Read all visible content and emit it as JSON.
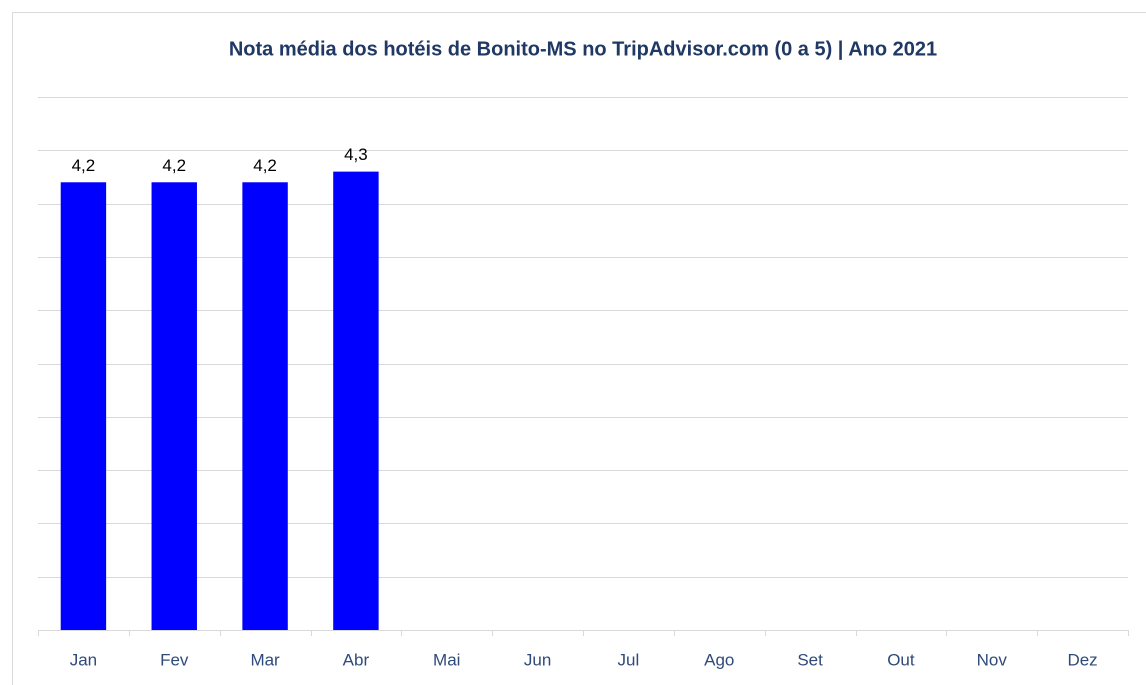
{
  "chart_data": {
    "type": "bar",
    "title": "Nota média dos hotéis de Bonito-MS no TripAdvisor.com (0 a 5) | Ano 2021",
    "categories": [
      "Jan",
      "Fev",
      "Mar",
      "Abr",
      "Mai",
      "Jun",
      "Jul",
      "Ago",
      "Set",
      "Out",
      "Nov",
      "Dez"
    ],
    "values": [
      4.2,
      4.2,
      4.2,
      4.3,
      null,
      null,
      null,
      null,
      null,
      null,
      null,
      null
    ],
    "value_labels": [
      "4,2",
      "4,2",
      "4,2",
      "4,3",
      null,
      null,
      null,
      null,
      null,
      null,
      null,
      null
    ],
    "color": "#0000ff",
    "ylim": [
      0,
      5
    ],
    "yticks": [
      0,
      0.5,
      1,
      1.5,
      2,
      2.5,
      3,
      3.5,
      4,
      4.5,
      5
    ],
    "grid": true
  }
}
